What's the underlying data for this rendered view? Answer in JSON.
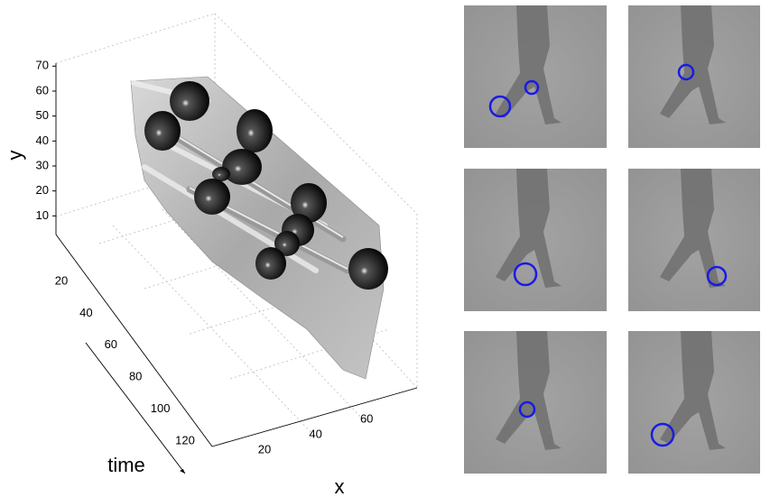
{
  "plot": {
    "y_axis": {
      "label": "y",
      "ticks": [
        10,
        20,
        30,
        40,
        50,
        60,
        70
      ]
    },
    "time_axis": {
      "label": "time",
      "ticks": [
        20,
        40,
        60,
        80,
        100,
        120
      ]
    },
    "x_axis": {
      "label": "x",
      "ticks": [
        20,
        40,
        60
      ]
    }
  }
}
